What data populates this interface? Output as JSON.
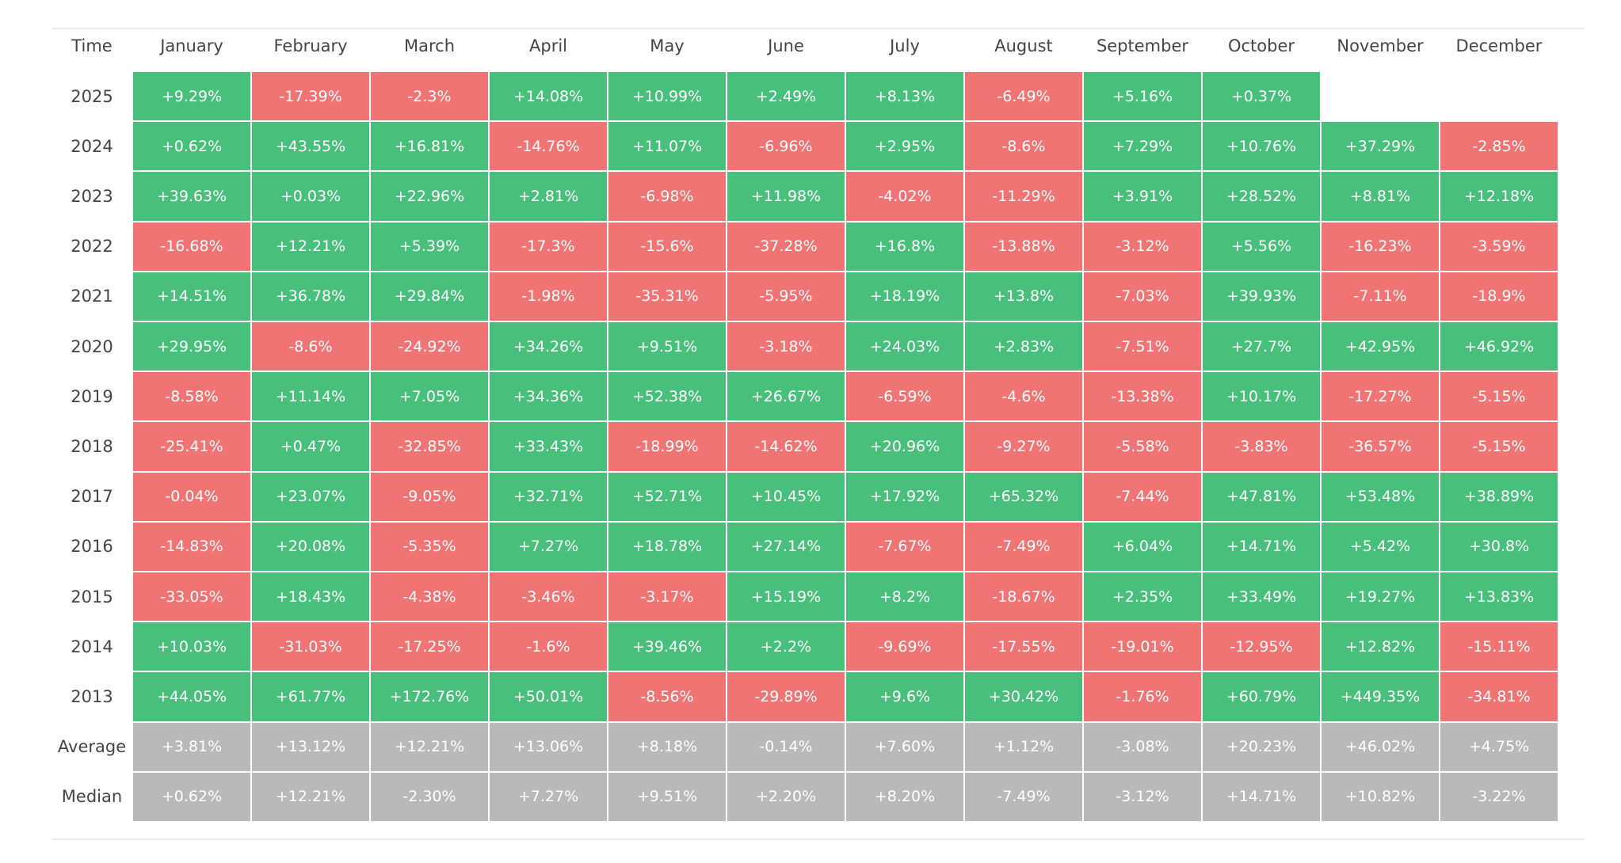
{
  "table": {
    "header": [
      "Time",
      "January",
      "February",
      "March",
      "April",
      "May",
      "June",
      "July",
      "August",
      "September",
      "October",
      "November",
      "December"
    ],
    "rows": [
      {
        "label": "2025",
        "cells": [
          "+9.29%",
          "-17.39%",
          "-2.3%",
          "+14.08%",
          "+10.99%",
          "+2.49%",
          "+8.13%",
          "-6.49%",
          "+5.16%",
          "+0.37%"
        ]
      },
      {
        "label": "2024",
        "cells": [
          "+0.62%",
          "+43.55%",
          "+16.81%",
          "-14.76%",
          "+11.07%",
          "-6.96%",
          "+2.95%",
          "-8.6%",
          "+7.29%",
          "+10.76%",
          "+37.29%",
          "-2.85%"
        ]
      },
      {
        "label": "2023",
        "cells": [
          "+39.63%",
          "+0.03%",
          "+22.96%",
          "+2.81%",
          "-6.98%",
          "+11.98%",
          "-4.02%",
          "-11.29%",
          "+3.91%",
          "+28.52%",
          "+8.81%",
          "+12.18%"
        ]
      },
      {
        "label": "2022",
        "cells": [
          "-16.68%",
          "+12.21%",
          "+5.39%",
          "-17.3%",
          "-15.6%",
          "-37.28%",
          "+16.8%",
          "-13.88%",
          "-3.12%",
          "+5.56%",
          "-16.23%",
          "-3.59%"
        ]
      },
      {
        "label": "2021",
        "cells": [
          "+14.51%",
          "+36.78%",
          "+29.84%",
          "-1.98%",
          "-35.31%",
          "-5.95%",
          "+18.19%",
          "+13.8%",
          "-7.03%",
          "+39.93%",
          "-7.11%",
          "-18.9%"
        ]
      },
      {
        "label": "2020",
        "cells": [
          "+29.95%",
          "-8.6%",
          "-24.92%",
          "+34.26%",
          "+9.51%",
          "-3.18%",
          "+24.03%",
          "+2.83%",
          "-7.51%",
          "+27.7%",
          "+42.95%",
          "+46.92%"
        ]
      },
      {
        "label": "2019",
        "cells": [
          "-8.58%",
          "+11.14%",
          "+7.05%",
          "+34.36%",
          "+52.38%",
          "+26.67%",
          "-6.59%",
          "-4.6%",
          "-13.38%",
          "+10.17%",
          "-17.27%",
          "-5.15%"
        ]
      },
      {
        "label": "2018",
        "cells": [
          "-25.41%",
          "+0.47%",
          "-32.85%",
          "+33.43%",
          "-18.99%",
          "-14.62%",
          "+20.96%",
          "-9.27%",
          "-5.58%",
          "-3.83%",
          "-36.57%",
          "-5.15%"
        ]
      },
      {
        "label": "2017",
        "cells": [
          "-0.04%",
          "+23.07%",
          "-9.05%",
          "+32.71%",
          "+52.71%",
          "+10.45%",
          "+17.92%",
          "+65.32%",
          "-7.44%",
          "+47.81%",
          "+53.48%",
          "+38.89%"
        ]
      },
      {
        "label": "2016",
        "cells": [
          "-14.83%",
          "+20.08%",
          "-5.35%",
          "+7.27%",
          "+18.78%",
          "+27.14%",
          "-7.67%",
          "-7.49%",
          "+6.04%",
          "+14.71%",
          "+5.42%",
          "+30.8%"
        ]
      },
      {
        "label": "2015",
        "cells": [
          "-33.05%",
          "+18.43%",
          "-4.38%",
          "-3.46%",
          "-3.17%",
          "+15.19%",
          "+8.2%",
          "-18.67%",
          "+2.35%",
          "+33.49%",
          "+19.27%",
          "+13.83%"
        ]
      },
      {
        "label": "2014",
        "cells": [
          "+10.03%",
          "-31.03%",
          "-17.25%",
          "-1.6%",
          "+39.46%",
          "+2.2%",
          "-9.69%",
          "-17.55%",
          "-19.01%",
          "-12.95%",
          "+12.82%",
          "-15.11%"
        ]
      },
      {
        "label": "2013",
        "cells": [
          "+44.05%",
          "+61.77%",
          "+172.76%",
          "+50.01%",
          "-8.56%",
          "-29.89%",
          "+9.6%",
          "+30.42%",
          "-1.76%",
          "+60.79%",
          "+449.35%",
          "-34.81%"
        ]
      }
    ],
    "summary_rows": [
      {
        "label": "Average",
        "cells": [
          "+3.81%",
          "+13.12%",
          "+12.21%",
          "+13.06%",
          "+8.18%",
          "-0.14%",
          "+7.60%",
          "+1.12%",
          "-3.08%",
          "+20.23%",
          "+46.02%",
          "+4.75%"
        ]
      },
      {
        "label": "Median",
        "cells": [
          "+0.62%",
          "+12.21%",
          "-2.30%",
          "+7.27%",
          "+9.51%",
          "+2.20%",
          "+8.20%",
          "-7.49%",
          "-3.12%",
          "+14.71%",
          "+10.82%",
          "-3.22%"
        ]
      }
    ],
    "positive_color": "#48c07c",
    "negative_color": "#f17474",
    "summary_color": "#b9b9b9"
  }
}
